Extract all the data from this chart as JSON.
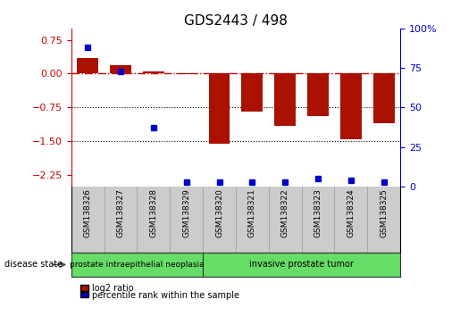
{
  "title": "GDS2443 / 498",
  "samples": [
    "GSM138326",
    "GSM138327",
    "GSM138328",
    "GSM138329",
    "GSM138320",
    "GSM138321",
    "GSM138322",
    "GSM138323",
    "GSM138324",
    "GSM138325"
  ],
  "log2_ratio": [
    0.35,
    0.18,
    0.05,
    -0.02,
    -1.55,
    -0.85,
    -1.15,
    -0.95,
    -1.45,
    -1.1
  ],
  "percentile_rank": [
    88,
    73,
    37,
    3,
    3,
    3,
    3,
    5,
    4,
    3
  ],
  "bar_color": "#aa1100",
  "dot_color": "#0000cc",
  "ylim_left": [
    -2.5,
    1.0
  ],
  "yticks_left": [
    -2.25,
    -1.5,
    -0.75,
    0,
    0.75
  ],
  "ylim_right": [
    0,
    100
  ],
  "yticks_right": [
    0,
    25,
    50,
    75,
    100
  ],
  "disease_groups": [
    {
      "label": "prostate intraepithelial neoplasia",
      "count": 4,
      "color": "#66dd66"
    },
    {
      "label": "invasive prostate tumor",
      "count": 6,
      "color": "#66dd66"
    }
  ],
  "disease_state_label": "disease state",
  "legend_red_label": "log2 ratio",
  "legend_blue_label": "percentile rank within the sample",
  "hline_color": "#cc0000",
  "bg_color": "#ffffff",
  "bar_width": 0.65,
  "group1_count": 4,
  "group2_count": 6
}
